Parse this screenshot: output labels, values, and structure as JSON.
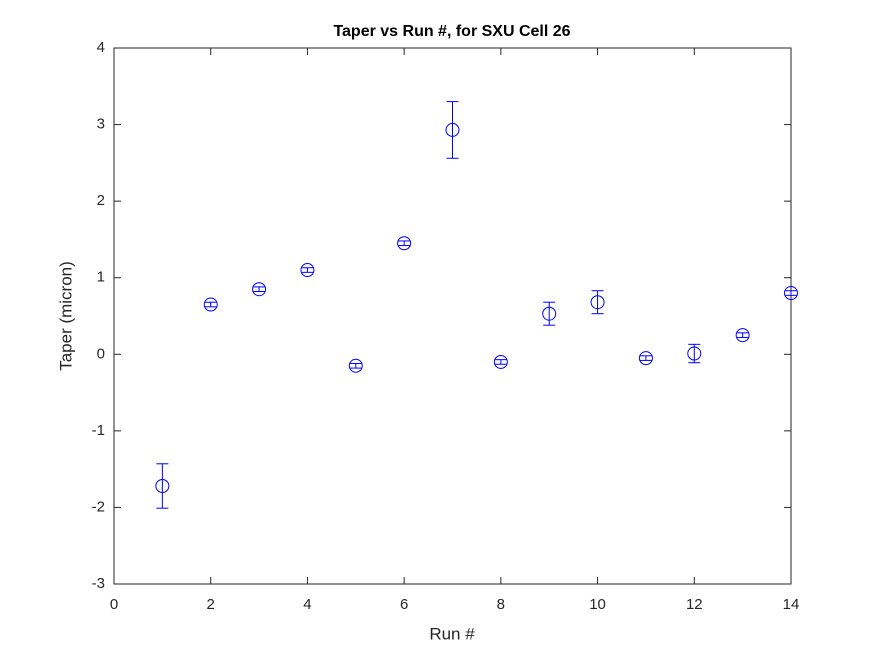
{
  "chart_data": {
    "type": "errorbar",
    "title": "Taper vs Run #, for SXU Cell 26",
    "x_label": "Run #",
    "y_label": "Taper (micron)",
    "x": [
      1,
      2,
      3,
      4,
      5,
      6,
      7,
      8,
      9,
      10,
      11,
      12,
      13,
      14
    ],
    "values": [
      -1.72,
      0.65,
      0.85,
      1.1,
      -0.15,
      1.45,
      2.93,
      -0.1,
      0.53,
      0.68,
      -0.05,
      0.01,
      0.25,
      0.8
    ],
    "errors": [
      0.29,
      0.03,
      0.03,
      0.03,
      0.03,
      0.03,
      0.37,
      0.03,
      0.15,
      0.15,
      0.03,
      0.12,
      0.03,
      0.03
    ],
    "color": "#0000ff",
    "xlim": [
      0,
      14
    ],
    "ylim": [
      -3,
      4
    ],
    "xticks": [
      0,
      2,
      4,
      6,
      8,
      10,
      12,
      14
    ],
    "yticks": [
      -3,
      -2,
      -1,
      0,
      1,
      2,
      3,
      4
    ],
    "grid": false
  }
}
